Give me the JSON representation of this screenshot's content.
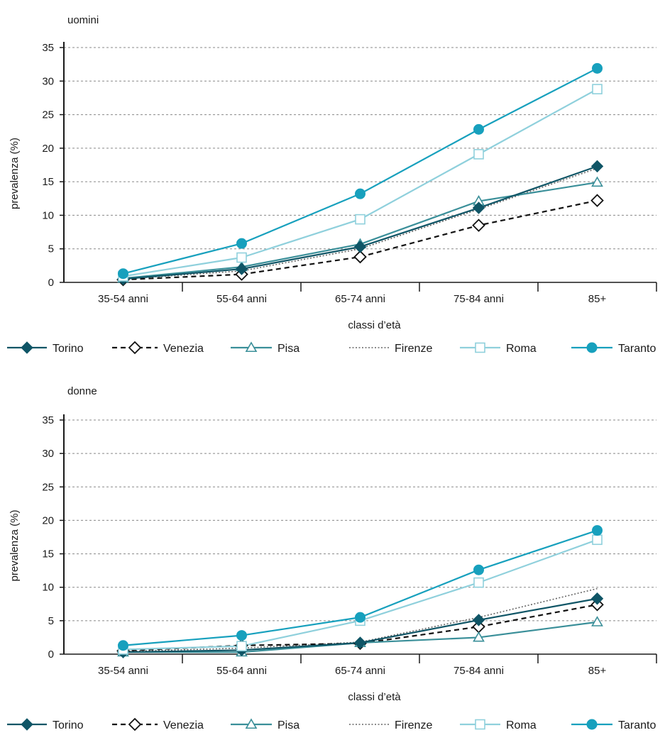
{
  "colors": {
    "Torino": "#0f5566",
    "Venezia": "#111111",
    "Pisa": "#3a8f99",
    "Firenze": "#666666",
    "Roma": "#8fd0dc",
    "Taranto": "#17a0bd",
    "grid": "#888888",
    "axis": "#1a1a1a"
  },
  "chart_data": [
    {
      "type": "line",
      "title": "uomini",
      "xlabel": "classi d’età",
      "ylabel": "prevalenza (%)",
      "categories": [
        "35-54 anni",
        "55-64 anni",
        "65-74 anni",
        "75-84 anni",
        "85+"
      ],
      "ylim": [
        0,
        35
      ],
      "yticks": [
        0,
        5,
        10,
        15,
        20,
        25,
        30,
        35
      ],
      "grid": "horizontal-dashed",
      "legend": "bottom",
      "series": [
        {
          "name": "Torino",
          "marker": "diamond-filled",
          "line": "solid",
          "values": [
            0.5,
            2.0,
            5.3,
            11.1,
            17.3
          ]
        },
        {
          "name": "Venezia",
          "marker": "diamond-open",
          "line": "dashed",
          "values": [
            0.4,
            1.2,
            3.8,
            8.5,
            12.2
          ]
        },
        {
          "name": "Pisa",
          "marker": "triangle-open",
          "line": "solid",
          "values": [
            0.6,
            2.3,
            5.7,
            12.1,
            14.9
          ]
        },
        {
          "name": "Firenze",
          "marker": "none",
          "line": "dotted",
          "values": [
            0.5,
            1.7,
            5.0,
            10.9,
            17.0
          ]
        },
        {
          "name": "Roma",
          "marker": "square-open",
          "line": "solid",
          "values": [
            0.9,
            3.7,
            9.4,
            19.1,
            28.8
          ]
        },
        {
          "name": "Taranto",
          "marker": "circle-filled",
          "line": "solid",
          "values": [
            1.3,
            5.8,
            13.2,
            22.8,
            31.9
          ]
        }
      ]
    },
    {
      "type": "line",
      "title": "donne",
      "xlabel": "classi d’età",
      "ylabel": "prevalenza (%)",
      "categories": [
        "35-54 anni",
        "55-64 anni",
        "65-74 anni",
        "75-84 anni",
        "85+"
      ],
      "ylim": [
        0,
        35
      ],
      "yticks": [
        0,
        5,
        10,
        15,
        20,
        25,
        30,
        35
      ],
      "grid": "horizontal-dashed",
      "legend": "bottom",
      "series": [
        {
          "name": "Torino",
          "marker": "diamond-filled",
          "line": "solid",
          "values": [
            0.3,
            0.6,
            1.7,
            5.1,
            8.3
          ]
        },
        {
          "name": "Venezia",
          "marker": "diamond-open",
          "line": "dashed",
          "values": [
            0.5,
            1.3,
            1.6,
            4.1,
            7.4
          ]
        },
        {
          "name": "Pisa",
          "marker": "triangle-open",
          "line": "solid",
          "values": [
            0.3,
            0.3,
            1.7,
            2.5,
            4.8
          ]
        },
        {
          "name": "Firenze",
          "marker": "none",
          "line": "dotted",
          "values": [
            0.4,
            0.9,
            1.8,
            5.5,
            9.8
          ]
        },
        {
          "name": "Roma",
          "marker": "square-open",
          "line": "solid",
          "values": [
            0.7,
            1.2,
            5.0,
            10.7,
            17.1
          ]
        },
        {
          "name": "Taranto",
          "marker": "circle-filled",
          "line": "solid",
          "values": [
            1.3,
            2.8,
            5.5,
            12.6,
            18.5
          ]
        }
      ]
    }
  ]
}
